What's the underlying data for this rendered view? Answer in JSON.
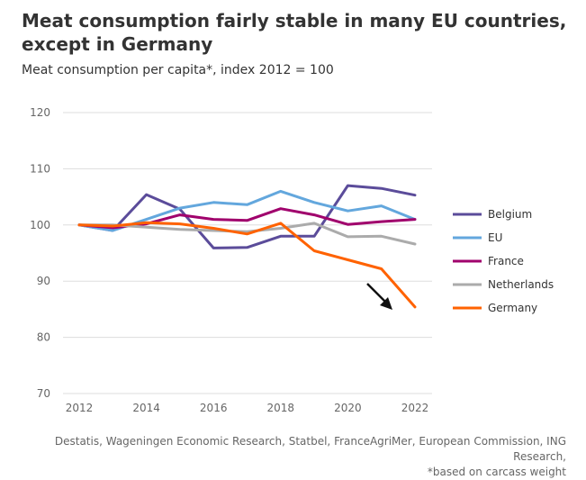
{
  "header": {
    "title": "Meat consumption fairly stable in many EU countries, except in Germany",
    "subtitle": "Meat consumption per capita*, index 2012 = 100"
  },
  "footer": {
    "source": "Destatis, Wageningen Economic Research, Statbel, FranceAgriMer, European Commission, ING Research,",
    "note": "*based on carcass weight"
  },
  "chart_data": {
    "type": "line",
    "x": [
      2012,
      2013,
      2014,
      2015,
      2016,
      2017,
      2018,
      2019,
      2020,
      2021,
      2022
    ],
    "xticks": [
      2012,
      2014,
      2016,
      2018,
      2020,
      2022
    ],
    "yticks": [
      70,
      80,
      90,
      100,
      110,
      120
    ],
    "xlim": [
      2012,
      2022
    ],
    "ylim": [
      70,
      120
    ],
    "grid": "horizontal",
    "legend_position": "right",
    "series": [
      {
        "name": "Belgium",
        "color": "#5b4c9a",
        "values": [
          100,
          99.0,
          105.4,
          102.8,
          95.9,
          96.0,
          98.0,
          98.0,
          107.0,
          106.5,
          105.3
        ]
      },
      {
        "name": "EU",
        "color": "#63a7dd",
        "values": [
          100,
          99.0,
          101.0,
          103.0,
          104.0,
          103.6,
          106.0,
          104.0,
          102.5,
          103.4,
          101.0
        ]
      },
      {
        "name": "France",
        "color": "#a0006c",
        "values": [
          100,
          99.5,
          100.2,
          101.8,
          101.0,
          100.8,
          102.9,
          101.8,
          100.1,
          100.6,
          101.0
        ]
      },
      {
        "name": "Netherlands",
        "color": "#ababab",
        "values": [
          100,
          100.0,
          99.6,
          99.2,
          99.0,
          98.8,
          99.4,
          100.3,
          97.9,
          98.0,
          96.6
        ]
      },
      {
        "name": "Germany",
        "color": "#ff6200",
        "values": [
          100,
          99.8,
          100.4,
          100.2,
          99.4,
          98.4,
          100.3,
          95.4,
          93.8,
          92.2,
          85.4
        ]
      }
    ]
  }
}
